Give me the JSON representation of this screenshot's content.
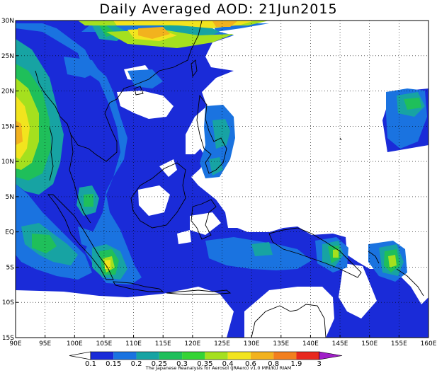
{
  "title": "Daily Averaged AOD: 21Jun2015",
  "credit": "The Japanese Reanalysis for Aerosol (JRAero) v1.0 MRI/KU RIAM",
  "map": {
    "lon_range": [
      90,
      160
    ],
    "lat_range": [
      -15,
      30
    ],
    "x_ticks": [
      "90E",
      "95E",
      "100E",
      "105E",
      "110E",
      "115E",
      "120E",
      "125E",
      "130E",
      "135E",
      "140E",
      "145E",
      "150E",
      "155E",
      "160E"
    ],
    "y_ticks": [
      "30N",
      "25N",
      "20N",
      "15N",
      "10N",
      "5N",
      "EQ",
      "5S",
      "10S",
      "15S"
    ],
    "grid": "dotted"
  },
  "colorbar": {
    "labels": [
      "0.1",
      "0.15",
      "0.2",
      "0.25",
      "0.3",
      "0.35",
      "0.4",
      "0.6",
      "0.8",
      "1.9",
      "3"
    ],
    "colors": [
      "#1a2bd8",
      "#1a73e0",
      "#17a3a3",
      "#1fbf5a",
      "#35d435",
      "#a5e01e",
      "#f2e41e",
      "#f2b21e",
      "#f27f1e",
      "#e8281e",
      "#a01ec8"
    ]
  }
}
